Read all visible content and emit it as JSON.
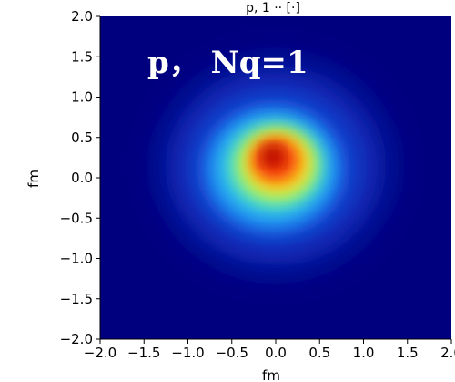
{
  "chart_data": {
    "type": "heatmap",
    "title": "p, 1 ·· [·]",
    "annotation": "p， Nq=1",
    "xlabel": "fm",
    "ylabel": "fm",
    "xlim": [
      -2.0,
      2.0
    ],
    "ylim": [
      -2.0,
      2.0
    ],
    "x_ticks": [
      -2.0,
      -1.5,
      -1.0,
      -0.5,
      0.0,
      0.5,
      1.0,
      1.5,
      2.0
    ],
    "y_ticks": [
      -2.0,
      -1.5,
      -1.0,
      -0.5,
      0.0,
      0.5,
      1.0,
      1.5,
      2.0
    ],
    "x_tick_labels": [
      "−2.0",
      "−1.5",
      "−1.0",
      "−0.5",
      "0.0",
      "0.5",
      "1.0",
      "1.5",
      "2.0"
    ],
    "y_tick_labels": [
      "−2.0",
      "−1.5",
      "−1.0",
      "−0.5",
      "0.0",
      "0.5",
      "1.0",
      "1.5",
      "2.0"
    ],
    "colormap": "jet",
    "grid": false,
    "distribution": {
      "peak_center": [
        0.0,
        0.15
      ],
      "core_radius_fm": 0.3,
      "halo_radius_fm": 1.2,
      "peak_level": 1.0
    }
  }
}
